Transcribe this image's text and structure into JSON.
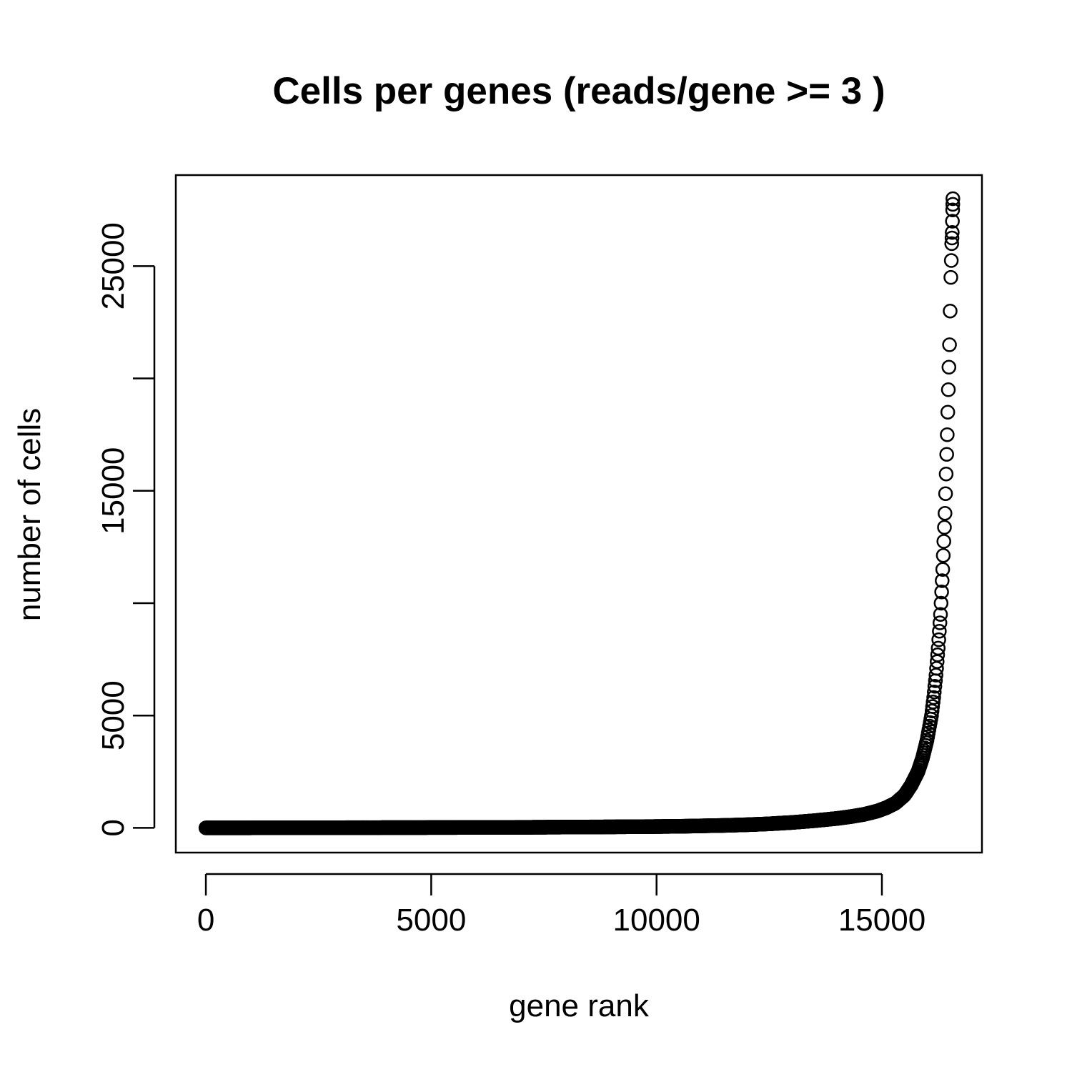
{
  "chart_data": {
    "type": "scatter",
    "title": "Cells per genes (reads/gene >= 3 )",
    "xlabel": "gene rank",
    "ylabel": "number of cells",
    "xlim": [
      -667,
      17220
    ],
    "ylim": [
      -1100,
      29050
    ],
    "x_ticks": [
      0,
      5000,
      10000,
      15000
    ],
    "y_ticks": [
      0,
      5000,
      10000,
      15000,
      20000,
      25000
    ],
    "x_tick_labels": [
      "0",
      "5000",
      "10000",
      "15000"
    ],
    "y_tick_labels": [
      "0",
      "5000",
      "",
      "15000",
      "",
      "25000"
    ],
    "grid": false,
    "legend": "none",
    "marker": "open-circle",
    "marker_color": "#000000",
    "curve": [
      [
        0,
        0
      ],
      [
        1000,
        2
      ],
      [
        2000,
        5
      ],
      [
        3000,
        8
      ],
      [
        4000,
        12
      ],
      [
        5000,
        15
      ],
      [
        6000,
        20
      ],
      [
        7000,
        25
      ],
      [
        8000,
        35
      ],
      [
        9000,
        45
      ],
      [
        10000,
        60
      ],
      [
        10500,
        70
      ],
      [
        11000,
        90
      ],
      [
        11500,
        110
      ],
      [
        12000,
        140
      ],
      [
        12500,
        180
      ],
      [
        13000,
        240
      ],
      [
        13500,
        320
      ],
      [
        14000,
        420
      ],
      [
        14300,
        500
      ],
      [
        14600,
        600
      ],
      [
        14900,
        750
      ],
      [
        15100,
        900
      ],
      [
        15300,
        1100
      ],
      [
        15500,
        1450
      ],
      [
        15650,
        1900
      ],
      [
        15800,
        2500
      ],
      [
        15900,
        3100
      ],
      [
        16000,
        3900
      ],
      [
        16100,
        5000
      ],
      [
        16150,
        5800
      ],
      [
        16200,
        6800
      ],
      [
        16250,
        8000
      ],
      [
        16300,
        9500
      ],
      [
        16350,
        11500
      ],
      [
        16400,
        14000
      ],
      [
        16450,
        17500
      ],
      [
        16500,
        21500
      ],
      [
        16530,
        24500
      ],
      [
        16550,
        26000
      ],
      [
        16560,
        26500
      ],
      [
        16570,
        27500
      ],
      [
        16575,
        28000
      ]
    ]
  }
}
